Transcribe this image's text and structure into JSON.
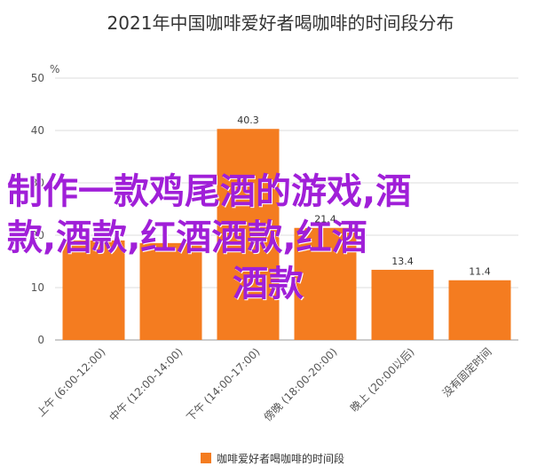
{
  "chart_data": {
    "type": "bar",
    "title": "2021年中国咖啡爱好者喝咖啡的时间段分布",
    "ylabel": "%",
    "categories": [
      "上午 (6:00-12:00)",
      "中午 (12:00-14:00)",
      "下午 (14:00-17:00)",
      "傍晚 (18:00-20:00)",
      "晚上 (20:00以后)",
      "没有固定时间"
    ],
    "values": [
      19.0,
      18.5,
      40.3,
      21.4,
      13.4,
      11.4
    ],
    "data_labels": [
      "",
      "",
      "40.3",
      "21.4",
      "13.4",
      "11.4"
    ],
    "yticks": [
      "0",
      "10",
      "20",
      "30",
      "40",
      "50"
    ],
    "ylim": [
      0,
      50
    ],
    "grid": true,
    "legend": [
      "咖啡爱好者喝咖啡的时间段"
    ],
    "legend_position": "bottom",
    "bar_color": "#f47c20"
  },
  "overlay": {
    "line1": "制作一款鸡尾酒的游戏,酒",
    "line2": "款,酒款,红酒酒款,红酒",
    "line3": "酒款"
  }
}
